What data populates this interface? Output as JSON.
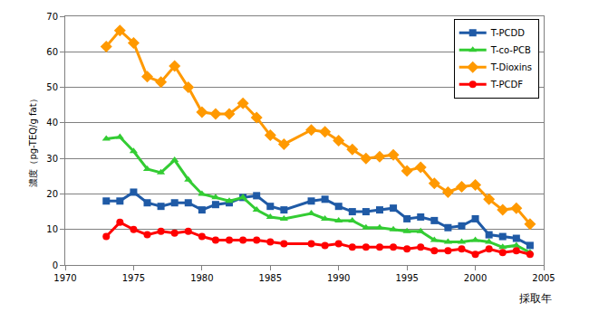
{
  "chart_data": {
    "type": "line",
    "x_label": "採取年",
    "y_label": "濃度（pg-TEQ/g fat）",
    "x": [
      1973,
      1974,
      1975,
      1976,
      1977,
      1978,
      1979,
      1980,
      1981,
      1982,
      1983,
      1984,
      1985,
      1986,
      1988,
      1989,
      1990,
      1991,
      1992,
      1993,
      1994,
      1995,
      1996,
      1997,
      1998,
      1999,
      2000,
      2001,
      2002,
      2003,
      2004
    ],
    "series": [
      {
        "name": "T-PCDD",
        "color": "#1f5aa6",
        "marker": "square",
        "values": [
          18,
          18,
          20.5,
          17.5,
          16.5,
          17.5,
          17.5,
          15.5,
          17,
          17.5,
          19,
          19.5,
          16.5,
          15.5,
          18,
          18.5,
          16.5,
          15,
          15,
          15.5,
          16,
          13,
          13.5,
          12.5,
          10.5,
          11,
          13,
          8.5,
          8,
          7.5,
          5.5
        ]
      },
      {
        "name": "T-co-PCB",
        "color": "#33cc33",
        "marker": "triangle",
        "values": [
          35.5,
          36,
          32,
          27,
          26,
          29.5,
          24,
          20,
          19,
          18,
          19,
          15.5,
          13.5,
          13,
          14.5,
          13,
          12.5,
          12.5,
          10.5,
          10.5,
          10,
          9.5,
          9.5,
          7,
          6.5,
          6.5,
          7,
          6.5,
          5,
          5.5,
          3.5
        ]
      },
      {
        "name": "T-Dioxins",
        "color": "#ff9900",
        "marker": "diamond",
        "values": [
          61.5,
          66,
          62.5,
          53,
          51.5,
          56,
          50,
          43,
          42.5,
          42.5,
          45.5,
          41.5,
          36.5,
          34,
          38,
          37.5,
          35,
          32.5,
          30,
          30.5,
          31,
          26.5,
          27.5,
          23,
          20.5,
          22,
          22.5,
          18.5,
          15.5,
          16,
          11.5
        ]
      },
      {
        "name": "T-PCDF",
        "color": "#ff0000",
        "marker": "circle",
        "values": [
          8,
          12,
          10,
          8.5,
          9.5,
          9,
          9.5,
          8,
          7,
          7,
          7,
          7,
          6.5,
          6,
          6,
          5.5,
          6,
          5,
          5,
          5,
          5,
          4.5,
          5,
          4,
          4,
          4.5,
          3,
          4.5,
          3.5,
          4,
          3
        ]
      }
    ],
    "xlim": [
      1970,
      2005
    ],
    "xticks": [
      1970,
      1975,
      1980,
      1985,
      1990,
      1995,
      2000,
      2005
    ],
    "ylim": [
      0,
      70
    ],
    "yticks": [
      0,
      10,
      20,
      30,
      40,
      50,
      60,
      70
    ],
    "grid": true,
    "legend": "upper right"
  }
}
